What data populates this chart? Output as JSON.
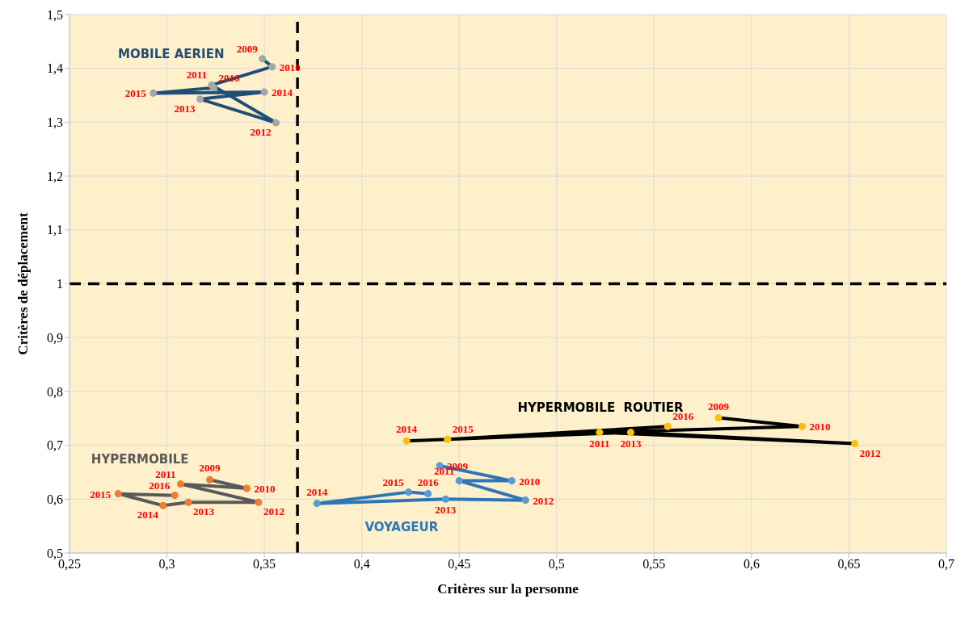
{
  "chart_data": {
    "type": "line",
    "xlabel": "Critères sur la personne",
    "ylabel": "Critères de déplacement",
    "marker": "circle",
    "grid": true,
    "legend": false,
    "xlim": [
      0.25,
      0.7
    ],
    "xticks": [
      {
        "value": 0.25,
        "label": "0,25"
      },
      {
        "value": 0.3,
        "label": "0,3"
      },
      {
        "value": 0.35,
        "label": "0,35"
      },
      {
        "value": 0.4,
        "label": "0,4"
      },
      {
        "value": 0.45,
        "label": "0,45"
      },
      {
        "value": 0.5,
        "label": "0,5"
      },
      {
        "value": 0.55,
        "label": "0,55"
      },
      {
        "value": 0.6,
        "label": "0,6"
      },
      {
        "value": 0.65,
        "label": "0,65"
      },
      {
        "value": 0.7,
        "label": "0,7"
      }
    ],
    "ylim": [
      0.5,
      1.5
    ],
    "yticks": [
      {
        "value": 0.5,
        "label": "0,5"
      },
      {
        "value": 0.6,
        "label": "0,6"
      },
      {
        "value": 0.7,
        "label": "0,7"
      },
      {
        "value": 0.8,
        "label": "0,8"
      },
      {
        "value": 0.9,
        "label": "0,9"
      },
      1,
      {
        "value": 1.1,
        "label": "1,1"
      },
      {
        "value": 1.2,
        "label": "1,2"
      },
      {
        "value": 1.3,
        "label": "1,3"
      },
      {
        "value": 1.4,
        "label": "1,4"
      },
      {
        "value": 1.5,
        "label": "1,5"
      }
    ],
    "ref_lines": [
      {
        "axis": "x",
        "value": 0.367,
        "color": "#000000",
        "line_style": "dashed"
      },
      {
        "axis": "y",
        "value": 1,
        "color": "#000000",
        "line_style": "dashed"
      }
    ],
    "series": [
      {
        "name": "MOBILE AERIEN",
        "color": "#1f4e79",
        "colors": [
          "#a6a6a6",
          "#a6a6a6",
          "#a6a6a6",
          "#a6a6a6",
          "#a6a6a6",
          "#a6a6a6",
          "#a6a6a6",
          "#a6a6a6"
        ],
        "x": [
          0.349,
          0.354,
          0.323,
          0.356,
          0.317,
          0.35,
          0.293,
          0.324
        ],
        "values": [
          1.418,
          1.403,
          1.369,
          1.299,
          1.343,
          1.356,
          1.354,
          1.364
        ]
      },
      {
        "name": "HYPERMOBILE",
        "color": "#595959",
        "colors": [
          "#ed7d31",
          "#ed7d31",
          "#ed7d31",
          "#ed7d31",
          "#ed7d31",
          "#ed7d31",
          "#ed7d31",
          "#ed7d31"
        ],
        "x": [
          0.322,
          0.341,
          0.307,
          0.347,
          0.311,
          0.298,
          0.275,
          0.304
        ],
        "values": [
          0.636,
          0.62,
          0.628,
          0.594,
          0.594,
          0.588,
          0.61,
          0.607
        ]
      },
      {
        "name": "VOYAGEUR",
        "color": "#2e75b6",
        "colors": [
          "#5b9bd5",
          "#5b9bd5",
          "#5b9bd5",
          "#5b9bd5",
          "#5b9bd5",
          "#5b9bd5",
          "#5b9bd5",
          "#5b9bd5"
        ],
        "x": [
          0.44,
          0.477,
          0.45,
          0.484,
          0.443,
          0.377,
          0.424,
          0.434
        ],
        "values": [
          0.662,
          0.634,
          0.634,
          0.598,
          0.6,
          0.592,
          0.613,
          0.61
        ]
      },
      {
        "name": "HYPERMOBILE  ROUTIER",
        "color": "#000000",
        "colors": [
          "#ffc000",
          "#ffc000",
          "#ffc000",
          "#ffc000",
          "#ffc000",
          "#ffc000",
          "#ffc000",
          "#ffc000"
        ],
        "x": [
          0.583,
          0.626,
          0.522,
          0.653,
          0.538,
          0.423,
          0.444,
          0.557
        ],
        "values": [
          0.751,
          0.735,
          0.724,
          0.703,
          0.724,
          0.708,
          0.711,
          0.735
        ]
      }
    ],
    "annotations": [
      {
        "text": "2009",
        "x": 0.349,
        "y": 1.418
      },
      {
        "text": "2010",
        "x": 0.354,
        "y": 1.403
      },
      {
        "text": "2011",
        "x": 0.323,
        "y": 1.369
      },
      {
        "text": "2012",
        "x": 0.356,
        "y": 1.299
      },
      {
        "text": "2013",
        "x": 0.317,
        "y": 1.343
      },
      {
        "text": "2014",
        "x": 0.35,
        "y": 1.356
      },
      {
        "text": "2015",
        "x": 0.293,
        "y": 1.354
      },
      {
        "text": "2016",
        "x": 0.324,
        "y": 1.364
      },
      {
        "text": "2009",
        "x": 0.322,
        "y": 0.636
      },
      {
        "text": "2010",
        "x": 0.341,
        "y": 0.62
      },
      {
        "text": "2011",
        "x": 0.307,
        "y": 0.628
      },
      {
        "text": "2012",
        "x": 0.347,
        "y": 0.594
      },
      {
        "text": "2013",
        "x": 0.311,
        "y": 0.594
      },
      {
        "text": "2014",
        "x": 0.298,
        "y": 0.588
      },
      {
        "text": "2015",
        "x": 0.275,
        "y": 0.61
      },
      {
        "text": "2016",
        "x": 0.304,
        "y": 0.607
      },
      {
        "text": "2009",
        "x": 0.44,
        "y": 0.662
      },
      {
        "text": "2010",
        "x": 0.477,
        "y": 0.634
      },
      {
        "text": "2011",
        "x": 0.45,
        "y": 0.634
      },
      {
        "text": "2012",
        "x": 0.484,
        "y": 0.598
      },
      {
        "text": "2013",
        "x": 0.443,
        "y": 0.6
      },
      {
        "text": "2014",
        "x": 0.377,
        "y": 0.592
      },
      {
        "text": "2015",
        "x": 0.424,
        "y": 0.613
      },
      {
        "text": "2016",
        "x": 0.434,
        "y": 0.61
      },
      {
        "text": "2009",
        "x": 0.583,
        "y": 0.751
      },
      {
        "text": "2010",
        "x": 0.626,
        "y": 0.735
      },
      {
        "text": "2011",
        "x": 0.522,
        "y": 0.724
      },
      {
        "text": "2012",
        "x": 0.653,
        "y": 0.703
      },
      {
        "text": "2013",
        "x": 0.538,
        "y": 0.724
      },
      {
        "text": "2014",
        "x": 0.423,
        "y": 0.708
      },
      {
        "text": "2015",
        "x": 0.444,
        "y": 0.711
      },
      {
        "text": "2016",
        "x": 0.557,
        "y": 0.735
      }
    ]
  }
}
